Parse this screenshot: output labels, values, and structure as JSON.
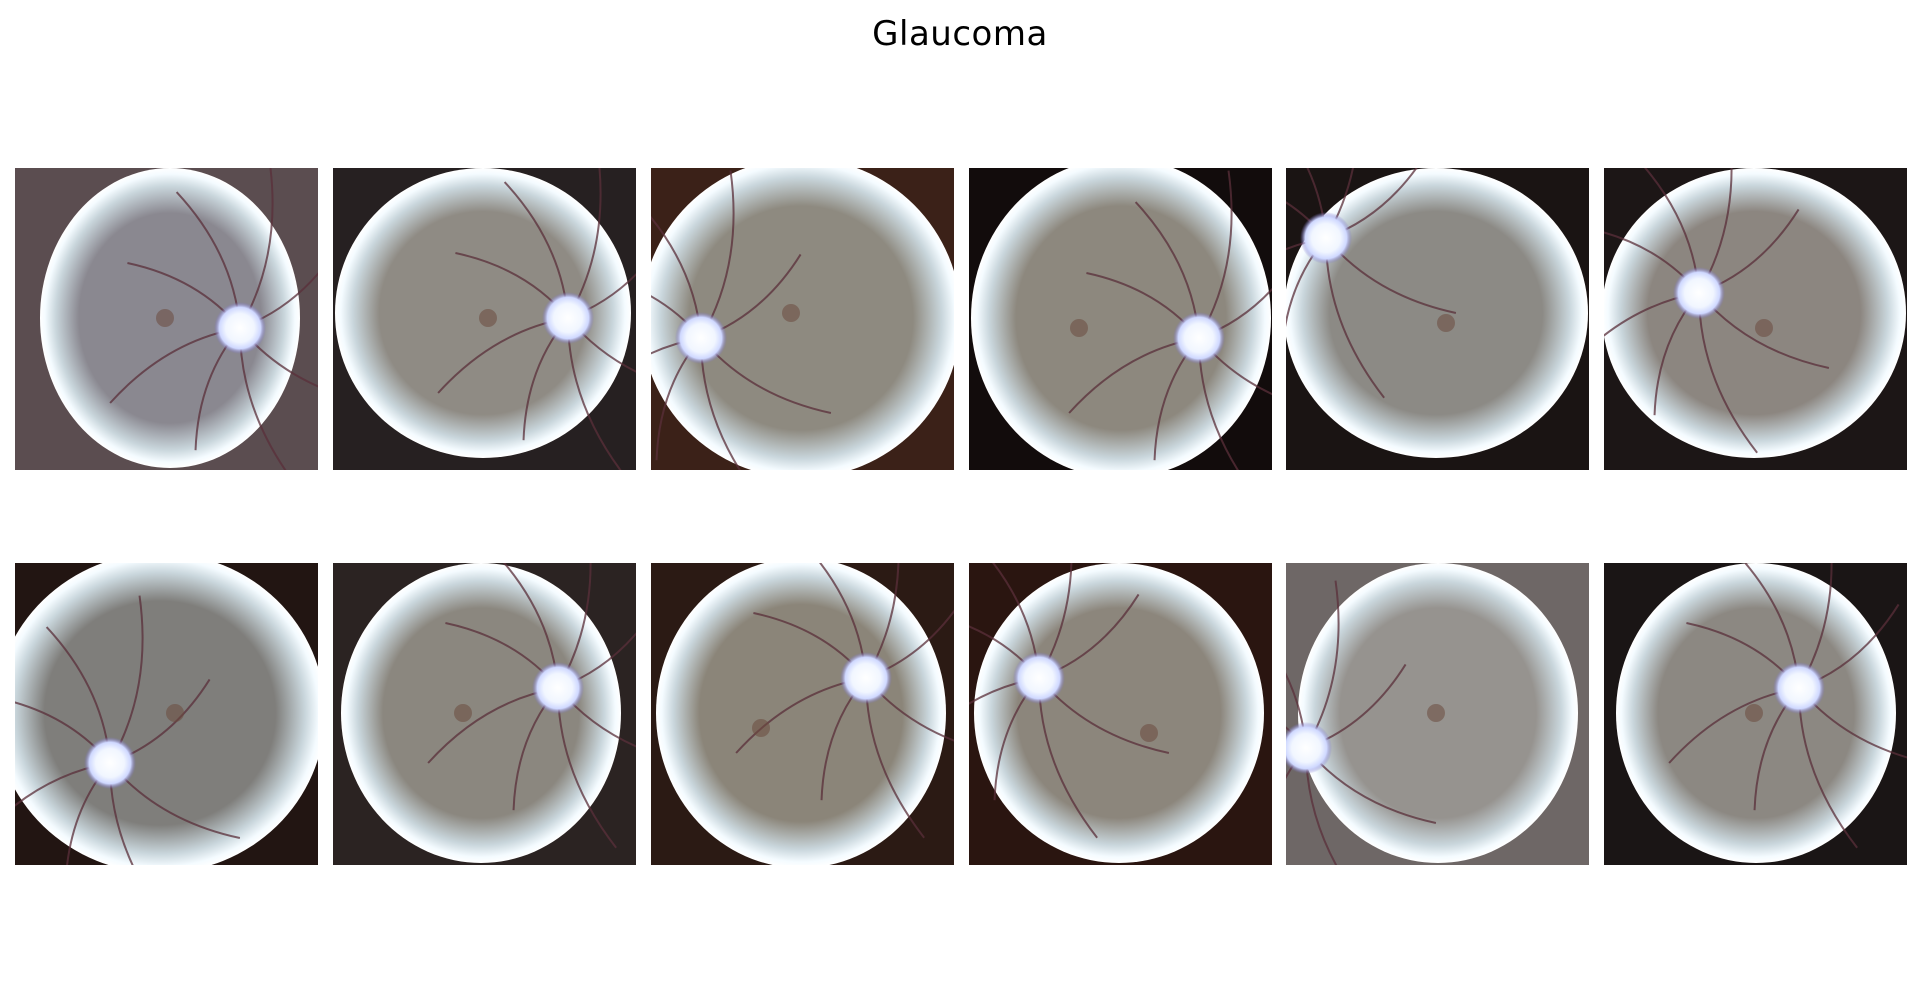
{
  "figure": {
    "title": "Glaucoma",
    "rows": 2,
    "columns": 6,
    "panels": [
      {
        "id": 1,
        "bg": "#5b4d50",
        "disc": "right",
        "tint": "#8a8890"
      },
      {
        "id": 2,
        "bg": "#262021",
        "disc": "right",
        "tint": "#8f8b84"
      },
      {
        "id": 3,
        "bg": "#3b2118",
        "disc": "left",
        "tint": "#8e8a80"
      },
      {
        "id": 4,
        "bg": "#120c0c",
        "disc": "right",
        "tint": "#8d887e"
      },
      {
        "id": 5,
        "bg": "#1a1413",
        "disc": "left",
        "tint": "#8c8a85"
      },
      {
        "id": 6,
        "bg": "#1c1616",
        "disc": "left",
        "tint": "#8c8680"
      },
      {
        "id": 7,
        "bg": "#221512",
        "disc": "left",
        "tint": "#7f7e7b"
      },
      {
        "id": 8,
        "bg": "#2b2322",
        "disc": "right",
        "tint": "#8b877f"
      },
      {
        "id": 9,
        "bg": "#2b1a14",
        "disc": "right",
        "tint": "#8b8579"
      },
      {
        "id": 10,
        "bg": "#2a1510",
        "disc": "left",
        "tint": "#8c867c"
      },
      {
        "id": 11,
        "bg": "#6e6766",
        "disc": "left",
        "tint": "#96938f"
      },
      {
        "id": 12,
        "bg": "#1a1515",
        "disc": "right",
        "tint": "#8c8882"
      }
    ]
  }
}
